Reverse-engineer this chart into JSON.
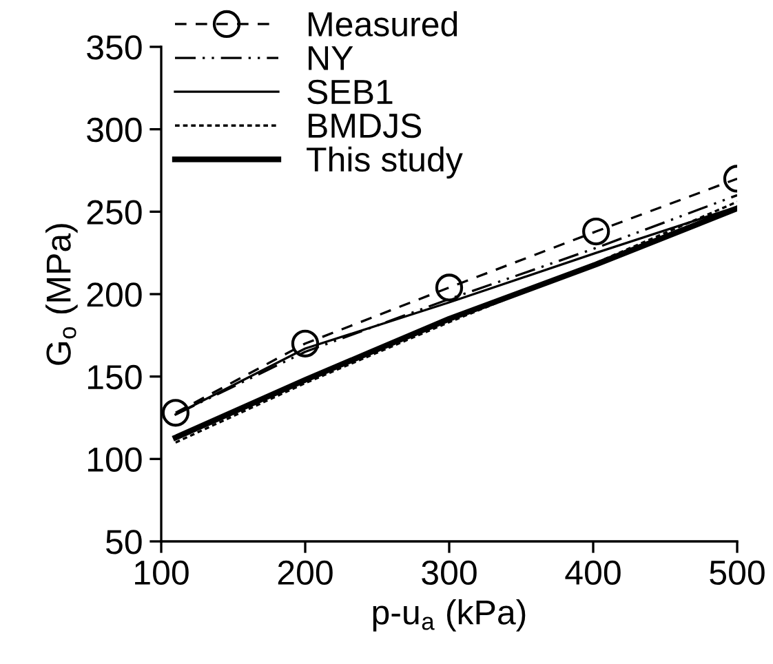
{
  "chart_data": {
    "type": "line",
    "xlabel": "p-u$_{a}$ (kPa)",
    "ylabel": "G$_{o}$ (MPa)",
    "xlim": [
      100,
      500
    ],
    "xticks": [
      100,
      200,
      300,
      400,
      500
    ],
    "ylim": [
      50,
      350
    ],
    "yticks": [
      50,
      100,
      150,
      200,
      250,
      300,
      350
    ],
    "grid": false,
    "legend": "top left",
    "series": [
      {
        "name": "Measured",
        "color": "#000000",
        "x": [
          110,
          200,
          300,
          402,
          500
        ],
        "values": [
          128,
          170,
          204,
          238,
          270
        ],
        "marker": "circle",
        "line_style": "dashed"
      },
      {
        "name": "NY",
        "color": "#000000",
        "x": [
          110,
          200,
          300,
          402,
          500
        ],
        "values": [
          127,
          165,
          197,
          228,
          260
        ],
        "marker": "none",
        "line_style": "dashdotdot"
      },
      {
        "name": "SEB1",
        "color": "#000000",
        "x": [
          110,
          200,
          300,
          402,
          500
        ],
        "values": [
          127,
          167,
          195,
          225,
          253
        ],
        "marker": "none",
        "line_style": "solid"
      },
      {
        "name": "BMDJS",
        "color": "#000000",
        "x": [
          110,
          200,
          300,
          402,
          500
        ],
        "values": [
          110,
          146,
          183,
          219,
          256
        ],
        "marker": "none",
        "line_style": "dotted"
      },
      {
        "name": "This study",
        "color": "#000000",
        "x": [
          110,
          200,
          300,
          402,
          500
        ],
        "values": [
          113,
          148,
          185,
          218,
          252
        ],
        "marker": "none",
        "line_style": "solid"
      }
    ]
  }
}
